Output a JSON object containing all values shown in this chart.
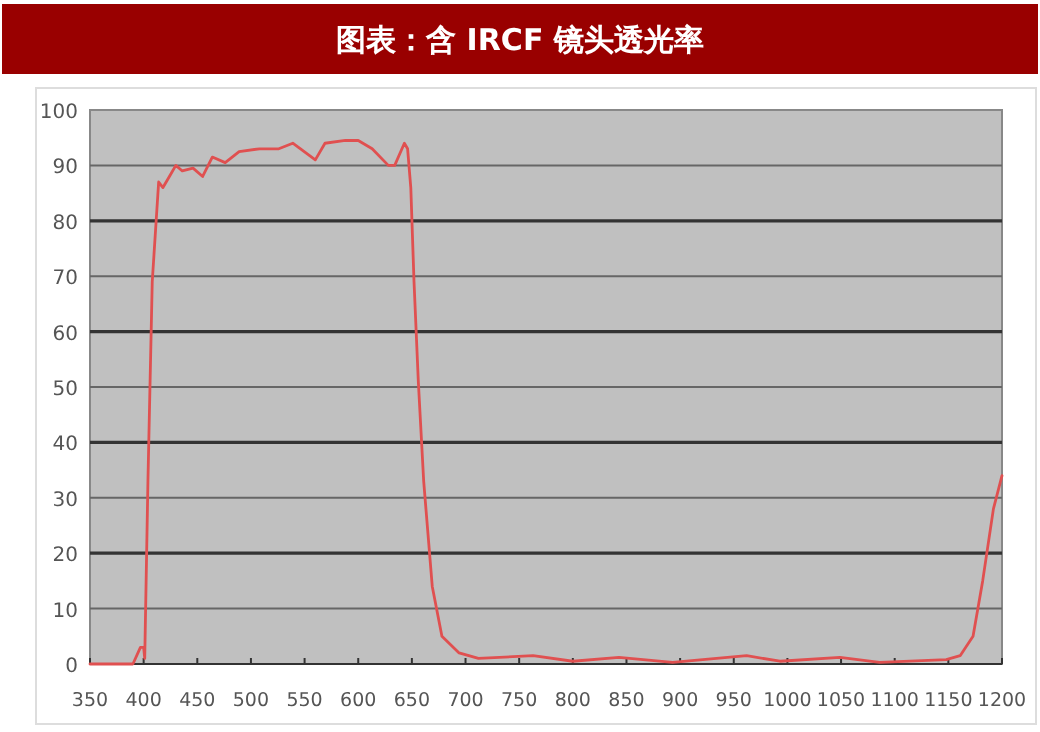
{
  "chart_data": {
    "type": "line",
    "title": "图表：含 IRCF 镜头透光率",
    "x": [
      350,
      390,
      397,
      400,
      401,
      404,
      408,
      414,
      418,
      424,
      430,
      436,
      446,
      455,
      464,
      476,
      489,
      508,
      526,
      539,
      560,
      569,
      588,
      600,
      613,
      628,
      634,
      643,
      646,
      649,
      652,
      656,
      661,
      669,
      678,
      694,
      712,
      763,
      800,
      843,
      893,
      962,
      993,
      1049,
      1086,
      1148,
      1161,
      1173,
      1182,
      1192,
      1200
    ],
    "series": [
      {
        "color": "#e05050",
        "values": [
          0,
          0,
          3,
          3,
          1,
          33,
          69,
          87,
          86,
          88,
          90,
          89,
          89.5,
          88,
          91.5,
          90.5,
          92.5,
          93,
          93,
          94,
          91,
          94,
          94.5,
          94.5,
          93,
          90,
          90,
          94,
          93,
          86,
          69,
          51,
          33,
          14,
          5,
          2,
          1,
          1.5,
          0.5,
          1.2,
          0.3,
          1.5,
          0.5,
          1.2,
          0.3,
          0.8,
          1.5,
          5,
          15,
          28,
          34
        ]
      }
    ],
    "xlim": [
      350,
      1200
    ],
    "ylim": [
      0,
      100
    ],
    "xticks": [
      350,
      400,
      450,
      500,
      550,
      600,
      650,
      700,
      750,
      800,
      850,
      900,
      950,
      1000,
      1050,
      1100,
      1150,
      1200
    ],
    "yticks": [
      0,
      10,
      20,
      30,
      40,
      50,
      60,
      70,
      80,
      90,
      100
    ],
    "grid": "y",
    "line_style": "solid"
  }
}
